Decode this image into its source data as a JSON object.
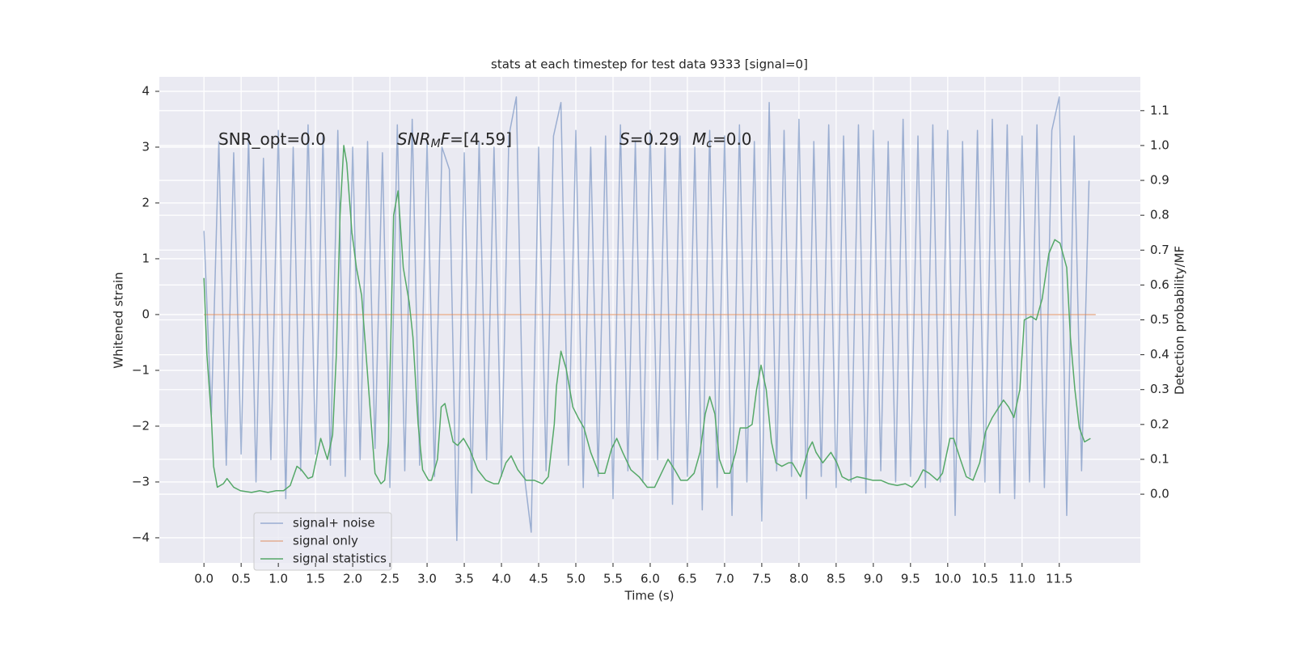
{
  "chart_data": {
    "type": "line",
    "title": "stats at each timestep for test data 9333 [signal=0]",
    "x_label": "Time (s)",
    "y_label": "Whitened strain",
    "y2_label": "Detection probability/MF",
    "annotations": [
      {
        "parts": [
          "SNR_opt=0.0"
        ]
      },
      {
        "parts": [
          "SNR",
          "M",
          "F",
          "=[4.59]"
        ]
      },
      {
        "parts": [
          "S",
          "=0.29",
          "M",
          "c",
          "=0.0"
        ]
      }
    ],
    "xlim": [
      -0.6,
      12.59
    ],
    "ylim": [
      -4.45,
      4.26
    ],
    "y2lim": [
      -0.197,
      1.197
    ],
    "xticks": [
      {
        "value": 0,
        "label": "0.0"
      },
      0.5,
      {
        "value": 1,
        "label": "1.0"
      },
      1.5,
      {
        "value": 2,
        "label": "2.0"
      },
      2.5,
      {
        "value": 3,
        "label": "3.0"
      },
      3.5,
      {
        "value": 4,
        "label": "4.0"
      },
      4.5,
      {
        "value": 5,
        "label": "5.0"
      },
      5.5,
      {
        "value": 6,
        "label": "6.0"
      },
      6.5,
      {
        "value": 7,
        "label": "7.0"
      },
      7.5,
      {
        "value": 8,
        "label": "8.0"
      },
      8.5,
      {
        "value": 9,
        "label": "9.0"
      },
      9.5,
      {
        "value": 10,
        "label": "10.0"
      },
      10.5,
      {
        "value": 11,
        "label": "11.0"
      },
      11.5
    ],
    "yticks": [
      {
        "value": -4,
        "label": "−4"
      },
      {
        "value": -3,
        "label": "−3"
      },
      {
        "value": -2,
        "label": "−2"
      },
      {
        "value": -1,
        "label": "−1"
      },
      0,
      1,
      2,
      3,
      4
    ],
    "y2ticks": [
      {
        "value": 0,
        "label": "0.0"
      },
      0.1,
      0.2,
      0.3,
      0.4,
      0.5,
      0.6,
      0.7,
      0.8,
      0.9,
      {
        "value": 1,
        "label": "1.0"
      },
      1.1
    ],
    "grid": true,
    "legend": "lower left",
    "series": [
      {
        "name": "signal+ noise",
        "color": "#4c72b0",
        "opacity": 0.5,
        "x": [
          0.0,
          0.1,
          0.2,
          0.3,
          0.4,
          0.5,
          0.6,
          0.7,
          0.8,
          0.9,
          1.0,
          1.1,
          1.2,
          1.3,
          1.4,
          1.5,
          1.6,
          1.7,
          1.8,
          1.9,
          2.0,
          2.1,
          2.2,
          2.3,
          2.4,
          2.5,
          2.6,
          2.7,
          2.8,
          2.9,
          3.0,
          3.1,
          3.2,
          3.3,
          3.4,
          3.5,
          3.6,
          3.7,
          3.8,
          3.9,
          4.0,
          4.1,
          4.2,
          4.3,
          4.4,
          4.5,
          4.6,
          4.7,
          4.8,
          4.9,
          5.0,
          5.1,
          5.2,
          5.3,
          5.4,
          5.5,
          5.6,
          5.7,
          5.8,
          5.9,
          6.0,
          6.1,
          6.2,
          6.3,
          6.4,
          6.5,
          6.6,
          6.7,
          6.8,
          6.9,
          7.0,
          7.1,
          7.2,
          7.3,
          7.4,
          7.5,
          7.6,
          7.7,
          7.8,
          7.9,
          8.0,
          8.1,
          8.2,
          8.3,
          8.4,
          8.5,
          8.6,
          8.7,
          8.8,
          8.9,
          9.0,
          9.1,
          9.2,
          9.3,
          9.4,
          9.5,
          9.6,
          9.7,
          9.8,
          9.9,
          10.0,
          10.1,
          10.2,
          10.3,
          10.4,
          10.5,
          10.6,
          10.7,
          10.8,
          10.9,
          11.0,
          11.1,
          11.2,
          11.3,
          11.4,
          11.5,
          11.6,
          11.7,
          11.8,
          11.9
        ],
        "values": [
          1.5,
          -1.8,
          3.1,
          -2.7,
          2.9,
          -2.5,
          3.2,
          -3.0,
          2.8,
          -2.6,
          3.3,
          -3.3,
          3.0,
          -2.8,
          3.4,
          -2.5,
          3.2,
          -2.7,
          3.3,
          -2.9,
          3.0,
          -2.6,
          3.1,
          -2.4,
          2.9,
          -3.1,
          3.4,
          -2.8,
          3.5,
          -2.7,
          3.1,
          -2.9,
          3.0,
          2.6,
          -4.05,
          2.9,
          -3.2,
          3.1,
          -2.6,
          3.0,
          -2.9,
          3.2,
          3.9,
          -2.8,
          -3.9,
          3.0,
          -2.8,
          3.2,
          3.8,
          -2.7,
          3.3,
          -3.1,
          3.0,
          -2.9,
          3.2,
          -3.3,
          3.4,
          -2.8,
          3.1,
          -3.0,
          3.3,
          -2.6,
          3.0,
          -3.4,
          3.2,
          -2.9,
          3.0,
          -3.5,
          3.3,
          -3.1,
          3.2,
          -3.6,
          3.4,
          -3.0,
          3.1,
          -3.7,
          3.8,
          -2.8,
          3.3,
          -2.9,
          3.5,
          -3.3,
          3.1,
          -2.9,
          3.4,
          -3.1,
          3.2,
          -3.0,
          3.4,
          -3.2,
          3.3,
          -2.8,
          3.1,
          -3.0,
          3.5,
          -2.9,
          3.2,
          -3.1,
          3.4,
          -3.0,
          3.3,
          -3.6,
          3.1,
          -2.9,
          3.3,
          -3.0,
          3.5,
          -3.2,
          3.4,
          -3.3,
          3.2,
          -3.0,
          3.4,
          -3.1,
          3.3,
          3.9,
          -3.6,
          3.2,
          -2.8,
          2.4
        ]
      },
      {
        "name": "signal only",
        "color": "#dd8452",
        "opacity": 0.6,
        "x": [
          0.0,
          11.99
        ],
        "values": [
          0,
          0
        ]
      },
      {
        "name": "signal statistics",
        "color": "#55a868",
        "opacity": 1,
        "axis": "y2",
        "x": [
          0.0,
          0.04,
          0.1,
          0.13,
          0.18,
          0.26,
          0.31,
          0.4,
          0.49,
          0.64,
          0.75,
          0.86,
          0.97,
          1.07,
          1.16,
          1.25,
          1.31,
          1.4,
          1.46,
          1.53,
          1.57,
          1.66,
          1.73,
          1.78,
          1.83,
          1.88,
          1.92,
          1.99,
          2.05,
          2.12,
          2.18,
          2.25,
          2.3,
          2.38,
          2.43,
          2.48,
          2.55,
          2.61,
          2.68,
          2.76,
          2.81,
          2.88,
          2.94,
          3.02,
          3.06,
          3.14,
          3.19,
          3.24,
          3.35,
          3.41,
          3.49,
          3.57,
          3.68,
          3.79,
          3.9,
          3.96,
          4.06,
          4.13,
          4.22,
          4.33,
          4.44,
          4.55,
          4.63,
          4.71,
          4.74,
          4.8,
          4.87,
          4.96,
          5.03,
          5.11,
          5.2,
          5.31,
          5.39,
          5.48,
          5.55,
          5.63,
          5.74,
          5.85,
          5.96,
          6.06,
          6.15,
          6.24,
          6.33,
          6.41,
          6.5,
          6.59,
          6.67,
          6.74,
          6.8,
          6.87,
          6.93,
          7.0,
          7.07,
          7.15,
          7.21,
          7.3,
          7.37,
          7.43,
          7.49,
          7.56,
          7.63,
          7.69,
          7.77,
          7.86,
          7.91,
          8.02,
          8.13,
          8.18,
          8.23,
          8.32,
          8.43,
          8.51,
          8.58,
          8.67,
          8.78,
          8.89,
          8.99,
          9.1,
          9.21,
          9.32,
          9.43,
          9.52,
          9.6,
          9.67,
          9.75,
          9.86,
          9.93,
          10.03,
          10.08,
          10.17,
          10.25,
          10.34,
          10.43,
          10.51,
          10.6,
          10.69,
          10.75,
          10.82,
          10.89,
          10.97,
          11.03,
          11.12,
          11.19,
          11.27,
          11.36,
          11.44,
          11.51,
          11.6,
          11.65,
          11.71,
          11.77,
          11.84,
          11.92
        ],
        "values": [
          0.62,
          0.4,
          0.22,
          0.08,
          0.02,
          0.03,
          0.045,
          0.02,
          0.01,
          0.005,
          0.01,
          0.005,
          0.01,
          0.01,
          0.025,
          0.08,
          0.07,
          0.045,
          0.05,
          0.12,
          0.16,
          0.1,
          0.17,
          0.4,
          0.8,
          1.0,
          0.95,
          0.75,
          0.65,
          0.57,
          0.4,
          0.2,
          0.06,
          0.03,
          0.04,
          0.15,
          0.8,
          0.87,
          0.65,
          0.55,
          0.45,
          0.2,
          0.07,
          0.04,
          0.04,
          0.1,
          0.25,
          0.26,
          0.15,
          0.14,
          0.16,
          0.13,
          0.07,
          0.04,
          0.03,
          0.03,
          0.09,
          0.11,
          0.07,
          0.04,
          0.04,
          0.03,
          0.05,
          0.2,
          0.31,
          0.41,
          0.36,
          0.25,
          0.22,
          0.19,
          0.12,
          0.06,
          0.06,
          0.13,
          0.16,
          0.12,
          0.07,
          0.05,
          0.02,
          0.02,
          0.06,
          0.1,
          0.07,
          0.04,
          0.04,
          0.06,
          0.12,
          0.23,
          0.28,
          0.23,
          0.1,
          0.06,
          0.06,
          0.12,
          0.19,
          0.19,
          0.2,
          0.3,
          0.37,
          0.3,
          0.15,
          0.09,
          0.08,
          0.09,
          0.09,
          0.05,
          0.13,
          0.15,
          0.12,
          0.09,
          0.12,
          0.09,
          0.05,
          0.04,
          0.05,
          0.045,
          0.04,
          0.04,
          0.03,
          0.025,
          0.03,
          0.02,
          0.04,
          0.07,
          0.06,
          0.04,
          0.06,
          0.16,
          0.16,
          0.1,
          0.05,
          0.04,
          0.09,
          0.18,
          0.22,
          0.25,
          0.27,
          0.25,
          0.22,
          0.3,
          0.5,
          0.51,
          0.5,
          0.56,
          0.69,
          0.73,
          0.72,
          0.65,
          0.45,
          0.3,
          0.19,
          0.15,
          0.16
        ]
      }
    ]
  }
}
